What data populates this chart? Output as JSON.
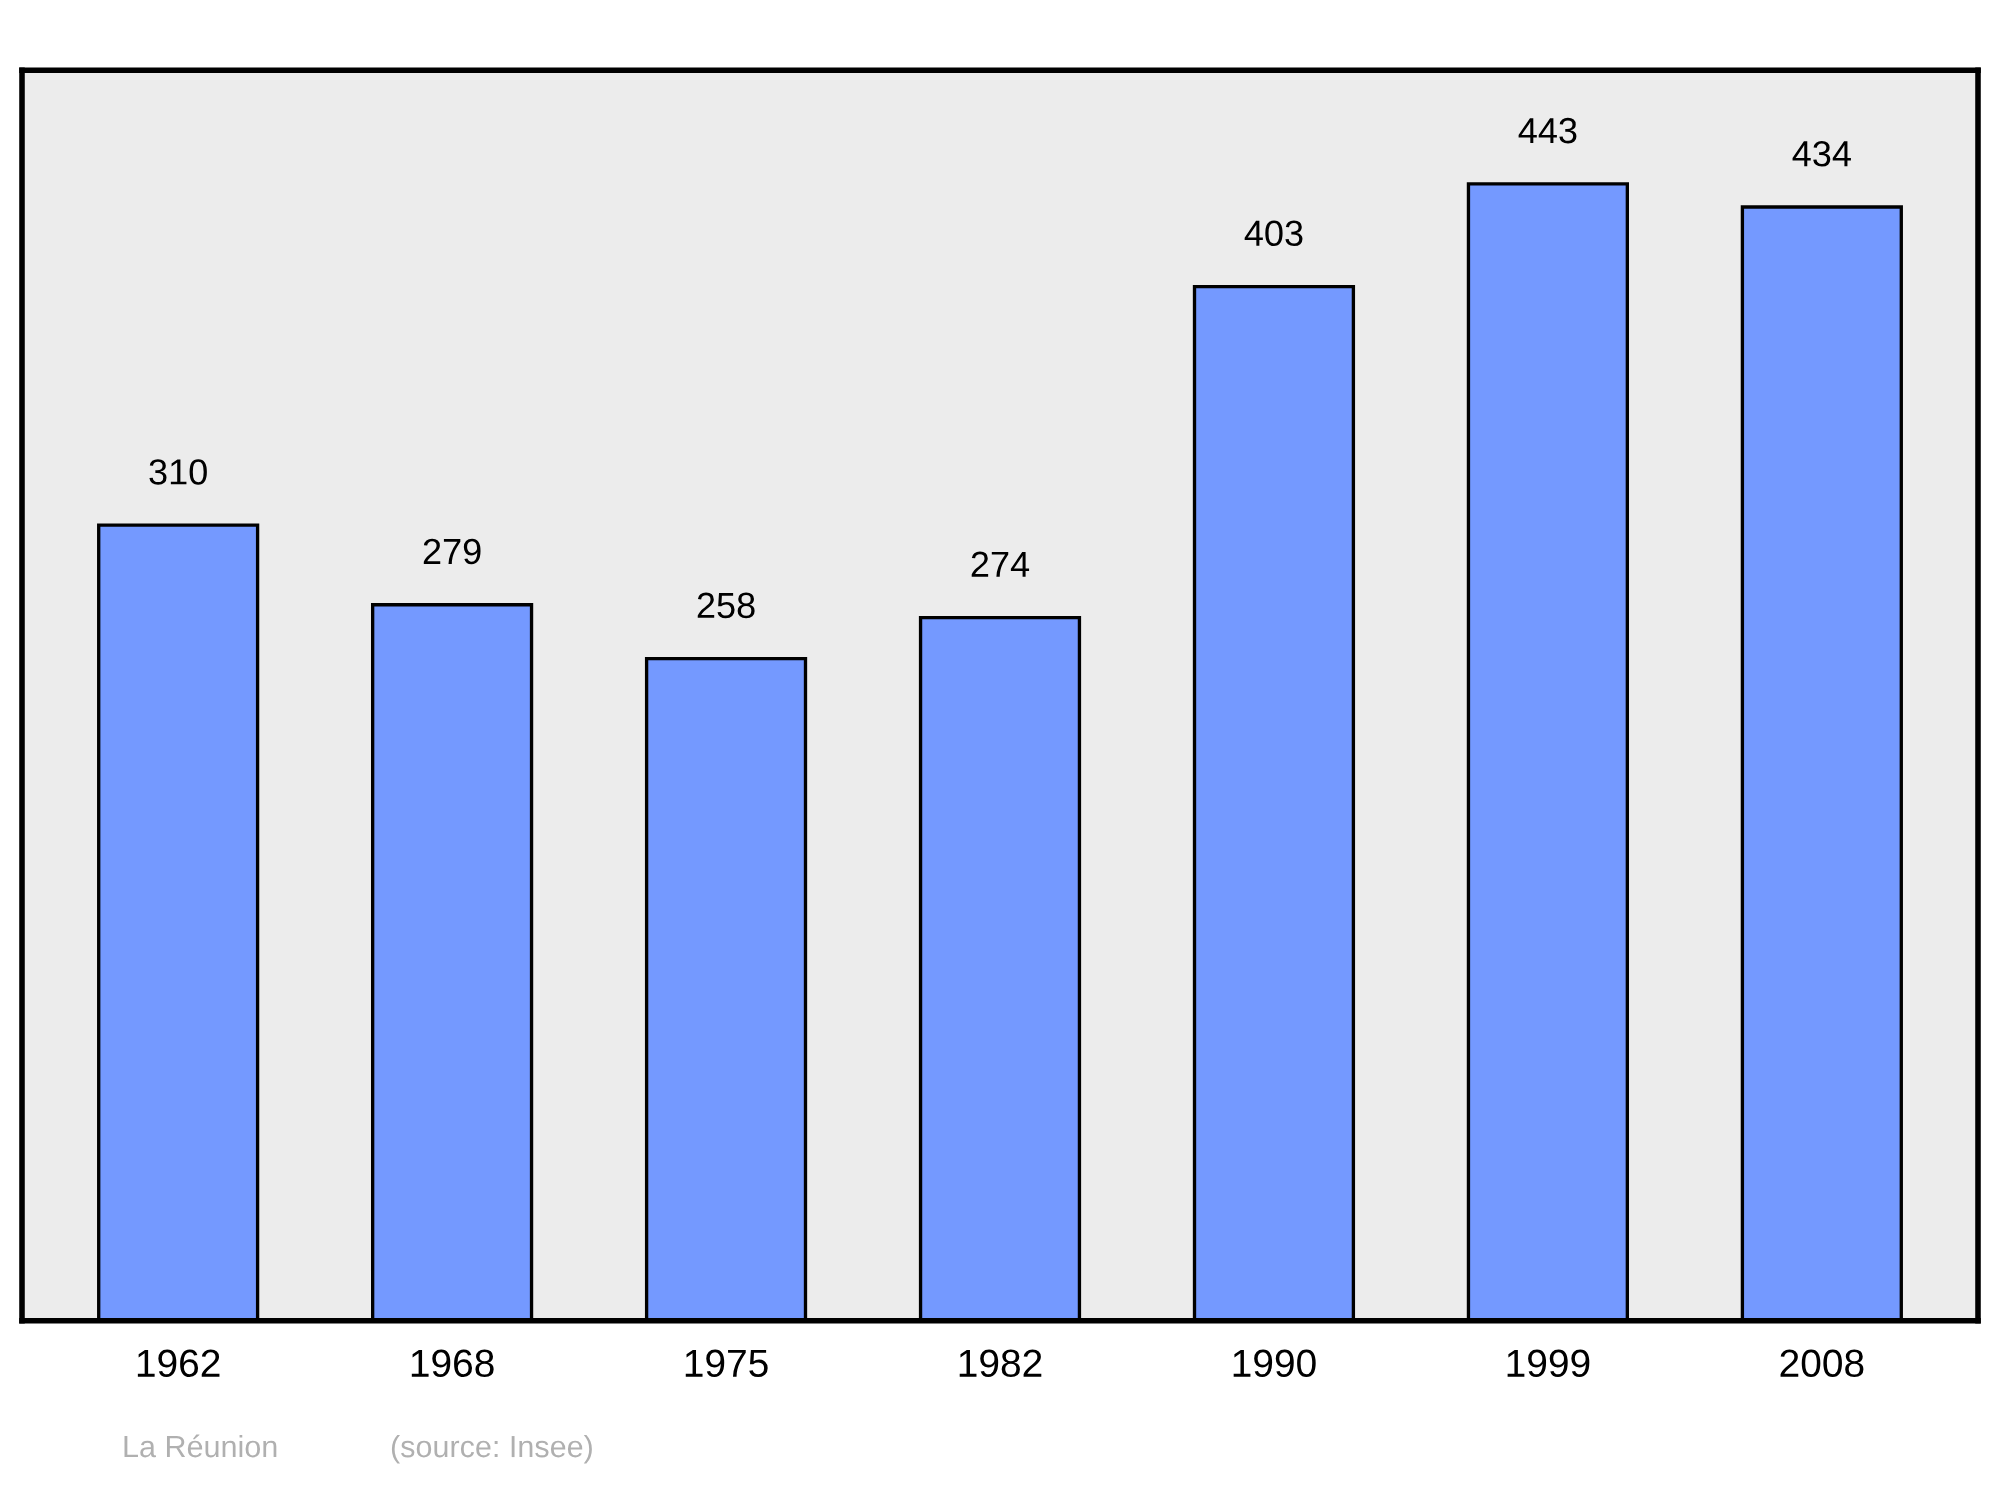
{
  "chart_data": {
    "type": "bar",
    "categories": [
      "1962",
      "1968",
      "1975",
      "1982",
      "1990",
      "1999",
      "2008"
    ],
    "values": [
      310,
      279,
      258,
      274,
      403,
      443,
      434
    ],
    "color": "#7499ff",
    "data_labels": true,
    "grid": false,
    "annotations": [
      "La Réunion",
      "(source: Insee)"
    ]
  }
}
